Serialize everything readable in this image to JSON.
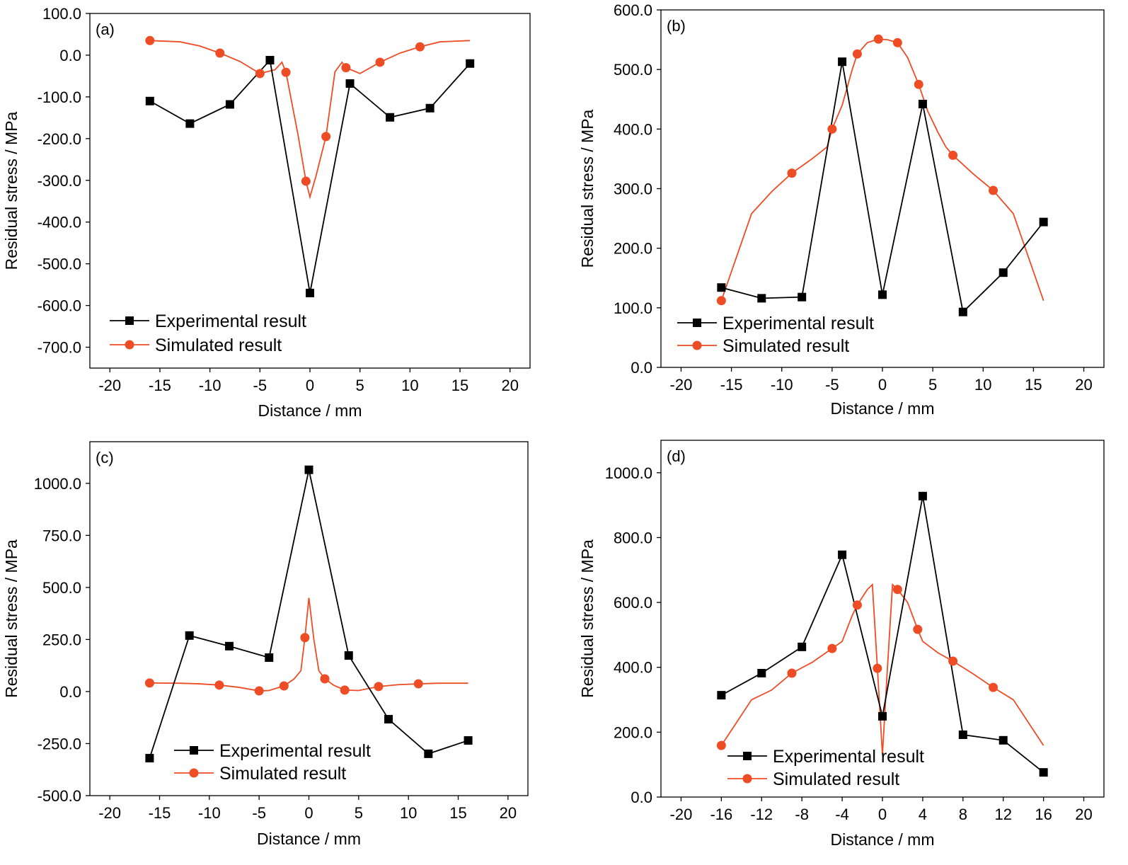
{
  "colors": {
    "experimental": "#000000",
    "simulated": "#ee4c24"
  },
  "chart_data": [
    {
      "type": "line",
      "panel_label": "(a)",
      "xlabel": "Distance / mm",
      "ylabel": "Residual stress / MPa",
      "xlim": [
        -22,
        22
      ],
      "ylim": [
        -750,
        100
      ],
      "xticks": [
        -20,
        -15,
        -10,
        -5,
        0,
        5,
        10,
        15,
        20
      ],
      "xtick_labels": [
        "-20",
        "-15",
        "-10",
        "-5",
        "0",
        "5",
        "10",
        "15",
        "20"
      ],
      "yticks": [
        100,
        0,
        -100,
        -200,
        -300,
        -400,
        -500,
        -600,
        -700
      ],
      "ytick_labels": [
        "100.0",
        "0.0",
        "-100.0",
        "-200.0",
        "-300.0",
        "-400.0",
        "-500.0",
        "-600.0",
        "-700.0"
      ],
      "legend": [
        "Experimental result",
        "Simulated result"
      ],
      "legend_position": "bottom-left",
      "experimental": {
        "name": "Experimental result",
        "x": [
          -16,
          -12,
          -8,
          -4,
          0,
          4,
          8,
          12,
          16
        ],
        "y": [
          -110,
          -164,
          -118,
          -12,
          -570,
          -68,
          -149,
          -127,
          -20
        ]
      },
      "simulated": {
        "name": "Simulated result",
        "marker_x": [
          -16,
          -9,
          -5,
          -2.4,
          -0.4,
          1.6,
          3.6,
          7,
          11
        ],
        "marker_y": [
          35,
          5,
          -44,
          -41,
          -302,
          -195,
          -30,
          -17,
          20
        ],
        "curve_x": [
          -16,
          -13,
          -11,
          -9,
          -7,
          -5,
          -3.5,
          -2.8,
          -2.4,
          -1.2,
          -0.4,
          0,
          0.6,
          1.6,
          2.5,
          3.2,
          3.6,
          5,
          7,
          9,
          11,
          13,
          16
        ],
        "curve_y": [
          35,
          32,
          22,
          5,
          -15,
          -44,
          -35,
          -17,
          -41,
          -190,
          -302,
          -340,
          -290,
          -195,
          -40,
          -17,
          -30,
          -44,
          -17,
          5,
          20,
          32,
          35
        ]
      }
    },
    {
      "type": "line",
      "panel_label": "(b)",
      "xlabel": "Distance / mm",
      "ylabel": "Residual stress / MPa",
      "xlim": [
        -22,
        22
      ],
      "ylim": [
        0,
        600
      ],
      "xticks": [
        -20,
        -15,
        -10,
        -5,
        0,
        5,
        10,
        15,
        20
      ],
      "xtick_labels": [
        "-20",
        "-15",
        "-10",
        "-5",
        "0",
        "5",
        "10",
        "15",
        "20"
      ],
      "yticks": [
        0,
        100,
        200,
        300,
        400,
        500,
        600
      ],
      "ytick_labels": [
        "0.0",
        "100.0",
        "200.0",
        "300.0",
        "400.0",
        "500.0",
        "600.0"
      ],
      "legend": [
        "Experimental result",
        "Simulated result"
      ],
      "legend_position": "bottom-left",
      "experimental": {
        "name": "Experimental result",
        "x": [
          -16,
          -12,
          -8,
          -4,
          0,
          4,
          8,
          12,
          16
        ],
        "y": [
          134,
          116,
          118,
          513,
          122,
          442,
          93,
          159,
          244
        ]
      },
      "simulated": {
        "name": "Simulated result",
        "marker_x": [
          -16,
          -9,
          -5,
          -2.5,
          -0.4,
          1.5,
          3.6,
          7,
          11
        ],
        "marker_y": [
          112,
          326,
          400,
          526,
          551,
          545,
          475,
          356,
          297
        ],
        "curve_x": [
          -16,
          -13,
          -11,
          -9,
          -7,
          -5.5,
          -5,
          -4,
          -3,
          -2.5,
          -1.5,
          -0.4,
          0.5,
          1.5,
          2.5,
          3.6,
          4.5,
          5.5,
          6.3,
          7,
          9,
          11,
          13,
          16
        ],
        "curve_y": [
          112,
          258,
          295,
          326,
          350,
          370,
          400,
          440,
          500,
          526,
          545,
          551,
          550,
          545,
          520,
          475,
          430,
          395,
          370,
          356,
          325,
          297,
          258,
          112
        ]
      }
    },
    {
      "type": "line",
      "panel_label": "(c)",
      "xlabel": "Distance / mm",
      "ylabel": "Residual stress / MPa",
      "xlim": [
        -22,
        22
      ],
      "ylim": [
        -500,
        1200
      ],
      "xticks": [
        -20,
        -15,
        -10,
        -5,
        0,
        5,
        10,
        15,
        20
      ],
      "xtick_labels": [
        "-20",
        "-15",
        "-10",
        "-5",
        "0",
        "5",
        "10",
        "15",
        "20"
      ],
      "yticks": [
        1000,
        750,
        500,
        250,
        0,
        -250,
        -500
      ],
      "ytick_labels": [
        "1000.0",
        "750.0",
        "500.0",
        "250.0",
        "0.0",
        "-250.0",
        "-500.0"
      ],
      "legend": [
        "Experimental result",
        "Simulated result"
      ],
      "legend_position": "bottom-center",
      "experimental": {
        "name": "Experimental result",
        "x": [
          -16,
          -12,
          -8,
          -4,
          0,
          4,
          8,
          12,
          16
        ],
        "y": [
          -320,
          269,
          218,
          163,
          1065,
          173,
          -133,
          -299,
          -235
        ]
      },
      "simulated": {
        "name": "Simulated result",
        "marker_x": [
          -16,
          -9,
          -5,
          -2.5,
          -0.4,
          1.6,
          3.6,
          7,
          11
        ],
        "marker_y": [
          41,
          31,
          3,
          27,
          259,
          61,
          7,
          24,
          37
        ],
        "curve_x": [
          -16,
          -13,
          -11,
          -9,
          -7,
          -5,
          -4,
          -2.5,
          -1.5,
          -0.8,
          -0.4,
          0,
          0.5,
          1,
          1.6,
          2.5,
          3.6,
          5,
          7,
          9,
          11,
          13,
          16
        ],
        "curve_y": [
          41,
          40,
          37,
          31,
          20,
          3,
          5,
          27,
          60,
          100,
          259,
          450,
          250,
          100,
          61,
          30,
          7,
          5,
          24,
          33,
          37,
          40,
          40
        ]
      }
    },
    {
      "type": "line",
      "panel_label": "(d)",
      "xlabel": "Distance / mm",
      "ylabel": "Residual stress / MPa",
      "xlim": [
        -22,
        22
      ],
      "ylim": [
        0,
        1100
      ],
      "xticks": [
        -20,
        -16,
        -12,
        -8,
        -4,
        0,
        4,
        8,
        12,
        16,
        20
      ],
      "xtick_labels": [
        "-20",
        "-16",
        "-12",
        "-8",
        "-4",
        "0",
        "4",
        "8",
        "12",
        "16",
        "20"
      ],
      "yticks": [
        0,
        200,
        400,
        600,
        800,
        1000
      ],
      "ytick_labels": [
        "0.0",
        "200.0",
        "400.0",
        "600.0",
        "800.0",
        "1000.0"
      ],
      "legend": [
        "Experimental result",
        "Simulated result"
      ],
      "legend_position": "bottom-left",
      "experimental": {
        "name": "Experimental result",
        "x": [
          -16,
          -12,
          -8,
          -4,
          0,
          4,
          8,
          12,
          16
        ],
        "y": [
          314,
          382,
          463,
          747,
          249,
          928,
          192,
          175,
          76
        ]
      },
      "simulated": {
        "name": "Simulated result",
        "marker_x": [
          -16,
          -9,
          -5,
          -2.5,
          -0.5,
          1.5,
          3.5,
          7,
          11
        ],
        "marker_y": [
          159,
          382,
          458,
          592,
          397,
          640,
          517,
          419,
          338
        ],
        "curve_x": [
          -16,
          -13,
          -11,
          -9,
          -7,
          -5,
          -4,
          -3,
          -2.5,
          -1.5,
          -1,
          -0.5,
          0,
          0.5,
          1,
          1.5,
          2.5,
          3.5,
          4,
          5.5,
          7,
          9,
          11,
          13,
          16
        ],
        "curve_y": [
          159,
          300,
          330,
          382,
          415,
          458,
          480,
          560,
          592,
          640,
          655,
          397,
          130,
          400,
          655,
          640,
          600,
          517,
          480,
          445,
          419,
          380,
          338,
          300,
          159
        ]
      }
    }
  ]
}
